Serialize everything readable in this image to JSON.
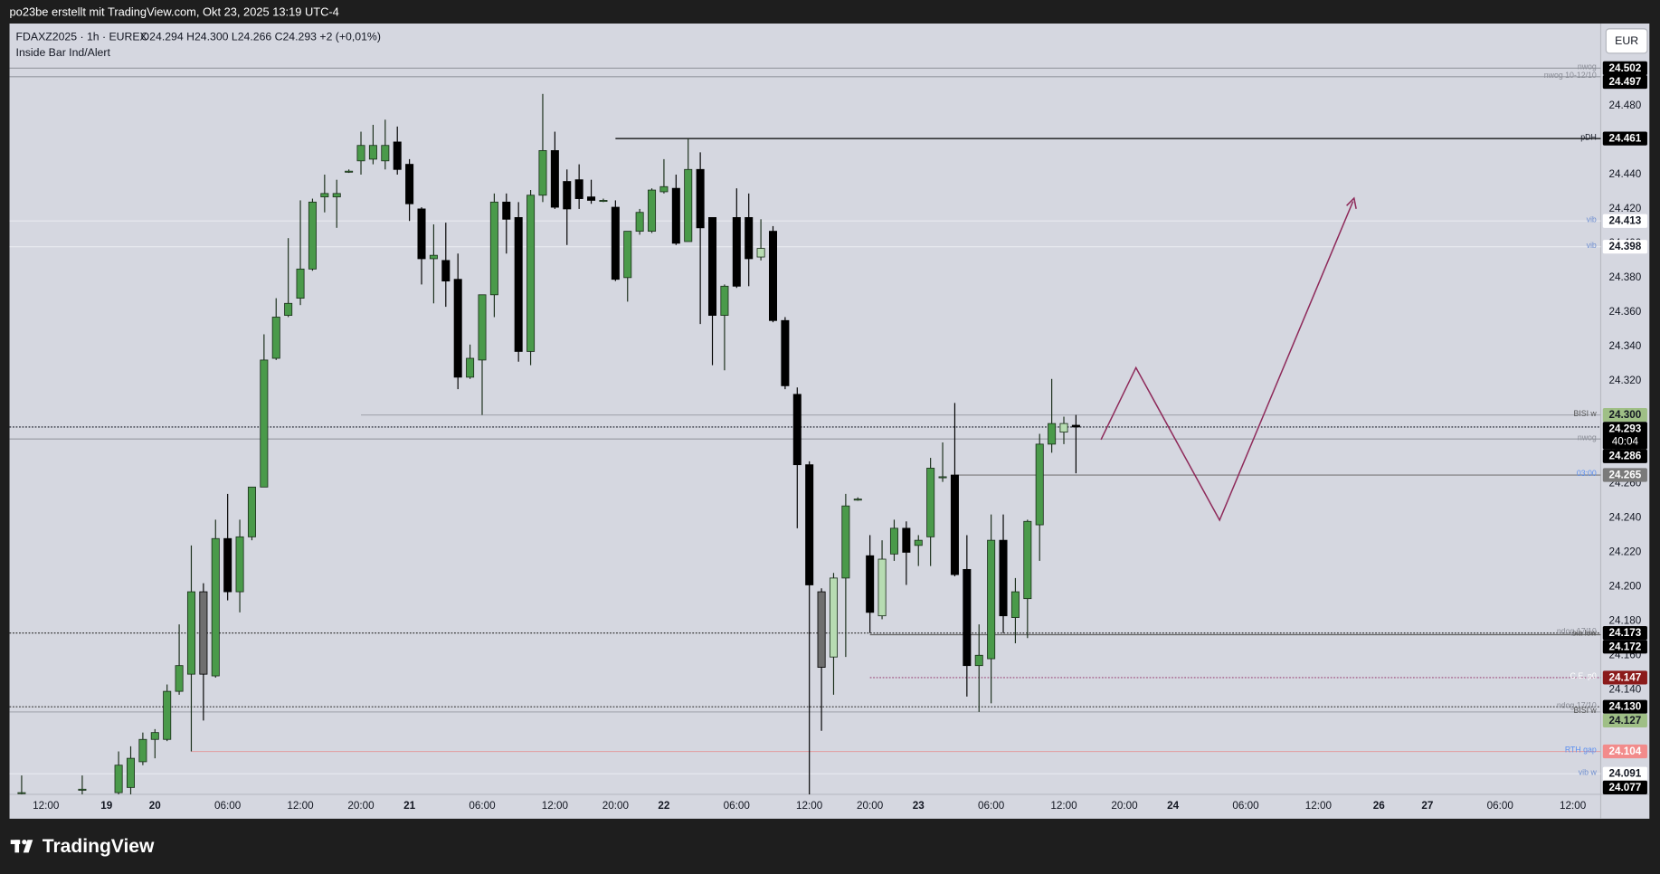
{
  "attribution": "po23be erstellt mit TradingView.com, Okt 23, 2025 13:19 UTC-4",
  "brand": "TradingView",
  "chart_data": {
    "type": "candlestick",
    "symbol": "FDAXZ2025 · 1h · EUREX",
    "ohlc_text": "O24.294  H24.300  L24.266  C24.293  +2 (+0,01%)",
    "indicator": "Inside Bar Ind/Alert",
    "currency": "EUR",
    "x": [
      -2,
      3,
      6,
      7,
      8,
      9,
      10,
      11,
      12,
      13,
      14,
      15,
      16,
      17,
      18,
      19,
      20,
      21,
      22,
      23,
      24,
      25,
      26,
      27,
      28,
      29,
      30,
      31,
      32,
      33,
      34,
      35,
      36,
      37,
      38,
      39,
      40,
      41,
      42,
      43,
      44,
      45,
      46,
      47,
      48,
      49,
      50,
      51,
      52,
      53,
      54,
      55,
      56,
      57,
      58,
      59,
      60,
      61,
      62,
      63,
      64,
      65,
      66,
      67,
      68,
      69,
      70,
      71,
      72,
      73,
      74,
      75,
      76,
      77,
      78,
      79,
      80,
      81,
      82,
      83,
      84,
      85
    ],
    "open": [
      24.08,
      24.082,
      24.08,
      24.083,
      24.098,
      24.111,
      24.111,
      24.139,
      24.149,
      24.197,
      24.148,
      24.228,
      24.197,
      24.229,
      24.258,
      24.333,
      24.358,
      24.368,
      24.385,
      24.427,
      24.427,
      24.442,
      24.448,
      24.449,
      24.448,
      24.459,
      24.446,
      24.42,
      24.391,
      24.39,
      24.379,
      24.322,
      24.332,
      24.37,
      24.424,
      24.415,
      24.337,
      24.428,
      24.454,
      24.436,
      24.437,
      24.427,
      24.425,
      24.421,
      24.38,
      24.407,
      24.407,
      24.43,
      24.432,
      24.401,
      24.443,
      24.415,
      24.358,
      24.415,
      24.415,
      24.392,
      24.407,
      24.355,
      24.312,
      24.271,
      24.197,
      24.159,
      24.205,
      24.251,
      24.218,
      24.183,
      24.219,
      24.234,
      24.224,
      24.229,
      24.264,
      24.265,
      24.21,
      24.154,
      24.158,
      24.227,
      24.182,
      24.193,
      24.236,
      24.283,
      24.29,
      24.294
    ],
    "high": [
      24.09,
      24.09,
      24.104,
      24.107,
      24.115,
      24.117,
      24.143,
      24.178,
      24.224,
      24.202,
      24.239,
      24.254,
      24.239,
      24.258,
      24.347,
      24.368,
      24.403,
      24.425,
      24.426,
      24.44,
      24.437,
      24.443,
      24.465,
      24.469,
      24.472,
      24.468,
      24.449,
      24.421,
      24.411,
      24.412,
      24.394,
      24.341,
      24.37,
      24.429,
      24.429,
      24.424,
      24.431,
      24.487,
      24.465,
      24.443,
      24.446,
      24.437,
      24.426,
      24.425,
      24.407,
      24.42,
      24.432,
      24.449,
      24.44,
      24.461,
      24.453,
      24.415,
      24.376,
      24.432,
      24.429,
      24.414,
      24.41,
      24.357,
      24.316,
      24.273,
      24.199,
      24.208,
      24.254,
      24.252,
      24.23,
      24.227,
      24.239,
      24.238,
      24.23,
      24.275,
      24.284,
      24.307,
      24.23,
      24.178,
      24.242,
      24.242,
      24.205,
      24.239,
      24.289,
      24.321,
      24.299,
      24.3
    ],
    "low": [
      24.078,
      24.078,
      24.078,
      24.079,
      24.096,
      24.1,
      24.11,
      24.137,
      24.104,
      24.122,
      24.147,
      24.192,
      24.185,
      24.227,
      24.258,
      24.332,
      24.357,
      24.364,
      24.384,
      24.418,
      24.409,
      24.441,
      24.44,
      24.446,
      24.443,
      24.44,
      24.413,
      24.376,
      24.365,
      24.363,
      24.315,
      24.321,
      24.3,
      24.357,
      24.394,
      24.331,
      24.329,
      24.424,
      24.42,
      24.399,
      24.42,
      24.423,
      24.424,
      24.378,
      24.366,
      24.405,
      24.406,
      24.429,
      24.399,
      24.401,
      24.353,
      24.329,
      24.326,
      24.374,
      24.375,
      24.39,
      24.354,
      24.315,
      24.234,
      24.077,
      24.116,
      24.137,
      24.159,
      24.25,
      24.173,
      24.181,
      24.215,
      24.201,
      24.212,
      24.212,
      24.261,
      24.206,
      24.136,
      24.127,
      24.132,
      24.173,
      24.167,
      24.17,
      24.215,
      24.278,
      24.283,
      24.266
    ],
    "close": [
      24.08,
      24.082,
      24.096,
      24.1,
      24.111,
      24.115,
      24.139,
      24.154,
      24.197,
      24.149,
      24.228,
      24.197,
      24.229,
      24.258,
      24.332,
      24.357,
      24.365,
      24.385,
      24.424,
      24.429,
      24.429,
      24.442,
      24.457,
      24.457,
      24.457,
      24.443,
      24.423,
      24.391,
      24.393,
      24.378,
      24.322,
      24.333,
      24.37,
      24.424,
      24.414,
      24.337,
      24.428,
      24.454,
      24.421,
      24.42,
      24.426,
      24.425,
      24.425,
      24.379,
      24.407,
      24.418,
      24.431,
      24.433,
      24.4,
      24.443,
      24.409,
      24.358,
      24.375,
      24.375,
      24.391,
      24.397,
      24.355,
      24.317,
      24.271,
      24.201,
      24.153,
      24.205,
      24.247,
      24.251,
      24.185,
      24.216,
      24.234,
      24.22,
      24.227,
      24.269,
      24.264,
      24.207,
      24.154,
      24.16,
      24.227,
      24.183,
      24.197,
      24.238,
      24.283,
      24.295,
      24.295,
      24.293
    ],
    "up_color": "#4a9a4a",
    "down_color": "#000000",
    "outline_color": "#1a2e1a",
    "inside_bars": [
      13,
      59,
      64,
      65,
      69,
      84
    ],
    "inside_up_color": "#b7dcb2",
    "inside_down_color": "#6f6f6f",
    "xlim": [
      -3,
      128.3
    ],
    "ylim": [
      24.079,
      24.528
    ],
    "grid": false,
    "yticks": [
      {
        "value": 24.14,
        "label": "24.140"
      },
      {
        "value": 24.16,
        "label": "24.160"
      },
      {
        "value": 24.18,
        "label": "24.180"
      },
      {
        "value": 24.2,
        "label": "24.200"
      },
      {
        "value": 24.22,
        "label": "24.220"
      },
      {
        "value": 24.24,
        "label": "24.240"
      },
      {
        "value": 24.26,
        "label": "24.260"
      },
      {
        "value": 24.28,
        "label": "24.280"
      },
      {
        "value": 24.3,
        "label": "24.300"
      },
      {
        "value": 24.32,
        "label": "24.320"
      },
      {
        "value": 24.34,
        "label": "24.340"
      },
      {
        "value": 24.36,
        "label": "24.360"
      },
      {
        "value": 24.38,
        "label": "24.380"
      },
      {
        "value": 24.4,
        "label": "24.400"
      },
      {
        "value": 24.42,
        "label": "24.420"
      },
      {
        "value": 24.44,
        "label": "24.440"
      },
      {
        "value": 24.46,
        "label": "24.460"
      },
      {
        "value": 24.48,
        "label": "24.480"
      }
    ],
    "xticks": [
      {
        "value": 0,
        "label": "12:00"
      },
      {
        "value": 5,
        "label": "19"
      },
      {
        "value": 9,
        "label": "20"
      },
      {
        "value": 15,
        "label": "06:00"
      },
      {
        "value": 21,
        "label": "12:00"
      },
      {
        "value": 26,
        "label": "20:00"
      },
      {
        "value": 30,
        "label": "21"
      },
      {
        "value": 36,
        "label": "06:00"
      },
      {
        "value": 42,
        "label": "12:00"
      },
      {
        "value": 47,
        "label": "20:00"
      },
      {
        "value": 51,
        "label": "22"
      },
      {
        "value": 57,
        "label": "06:00"
      },
      {
        "value": 63,
        "label": "12:00"
      },
      {
        "value": 68,
        "label": "20:00"
      },
      {
        "value": 72,
        "label": "23"
      },
      {
        "value": 78,
        "label": "06:00"
      },
      {
        "value": 84,
        "label": "12:00"
      },
      {
        "value": 89,
        "label": "20:00"
      },
      {
        "value": 93,
        "label": "24"
      },
      {
        "value": 99,
        "label": "06:00"
      },
      {
        "value": 105,
        "label": "12:00"
      },
      {
        "value": 110,
        "label": "26"
      },
      {
        "value": 114,
        "label": "27"
      },
      {
        "value": 120,
        "label": "06:00"
      },
      {
        "value": 126,
        "label": "12:00"
      }
    ],
    "levels": [
      {
        "value": 24.502,
        "text": "nwog",
        "tag": "24.502",
        "color": "#9598a1",
        "dash": "solid",
        "text_color": "#8a8d96",
        "tag_bg": "#000000",
        "tag_fg": "#ffffff"
      },
      {
        "value": 24.497,
        "text": "nwog 10-12/10",
        "tag": "24.497",
        "color": "#9598a1",
        "dash": "solid",
        "text_color": "#8a8d96",
        "tag_bg": "#000000",
        "tag_fg": "#ffffff"
      },
      {
        "value": 24.461,
        "text": "pDH",
        "tag": "24.461",
        "color": "#000000",
        "dash": "solid",
        "text_color": "#131722",
        "tag_bg": "#000000",
        "tag_fg": "#ffffff",
        "x_start": 47
      },
      {
        "value": 24.413,
        "text": "vib",
        "tag": "24.413",
        "color": "#e9eaf0",
        "dash": "solid",
        "text_color": "#6f8fd0",
        "tag_bg": "#ffffff",
        "tag_fg": "#131722"
      },
      {
        "value": 24.398,
        "text": "vib",
        "tag": "24.398",
        "color": "#e9eaf0",
        "dash": "solid",
        "text_color": "#6f8fd0",
        "tag_bg": "#ffffff",
        "tag_fg": "#131722"
      },
      {
        "value": 24.3,
        "text": "BISI w",
        "tag": "24.300",
        "color": "#a8abb3",
        "dash": "solid",
        "text_color": "#555555",
        "tag_bg": "#9fbf86",
        "tag_fg": "#131722",
        "x_start": 26
      },
      {
        "value": 24.293,
        "tag": "24.293",
        "countdown": "40:04",
        "color": "#131722",
        "dash": "dotted",
        "tag_bg": "#000000",
        "tag_fg": "#ffffff"
      },
      {
        "value": 24.286,
        "text": "nwog",
        "tag": "24.286",
        "color": "#9598a1",
        "dash": "solid",
        "text_color": "#8a8d96",
        "tag_bg": "#000000",
        "tag_fg": "#ffffff"
      },
      {
        "value": 24.265,
        "text": "03:00",
        "tag": "24.265",
        "color": "#7a7a7a",
        "dash": "solid",
        "text_color": "#5b8ff0",
        "tag_bg": "#7a7a7a",
        "tag_fg": "#ffffff",
        "x_start": 75
      },
      {
        "value": 24.173,
        "text": "ndog 17/10",
        "tag": "24.173",
        "color": "#333333",
        "dash": "dotted",
        "text_color": "#8a8d96",
        "tag_bg": "#000000",
        "tag_fg": "#ffffff"
      },
      {
        "value": 24.172,
        "text": "sia low",
        "tag": "24.172",
        "color": "#666666",
        "dash": "solid",
        "text_color": "#555555",
        "tag_bg": "#000000",
        "tag_fg": "#ffffff",
        "x_start": 68
      },
      {
        "value": 24.147,
        "text": "C.E. p0",
        "tag": "24.147",
        "color": "#9c4a7a",
        "dash": "dotted",
        "text_color": "#ffffff",
        "tag_bg": "#8b1a1a",
        "tag_fg": "#ffffff",
        "x_start": 68
      },
      {
        "value": 24.13,
        "text": "ndog 17/10",
        "tag": "24.130",
        "color": "#333333",
        "dash": "dotted",
        "text_color": "#8a8d96",
        "tag_bg": "#000000",
        "tag_fg": "#ffffff"
      },
      {
        "value": 24.127,
        "text": "BISI w",
        "tag": "24.127",
        "color": "#a8abb3",
        "dash": "solid",
        "text_color": "#555555",
        "tag_bg": "#9fbf86",
        "tag_fg": "#131722"
      },
      {
        "value": 24.104,
        "text": "RTH gap",
        "tag": "24.104",
        "color": "#e0a4a8",
        "dash": "solid",
        "text_color": "#5b8ff0",
        "tag_bg": "#f28b8b",
        "tag_fg": "#ffffff",
        "x_start": 12
      },
      {
        "value": 24.091,
        "text": "vib w",
        "tag": "24.091",
        "color": "#e9eaf0",
        "dash": "solid",
        "text_color": "#6f8fd0",
        "tag_bg": "#ffffff",
        "tag_fg": "#131722"
      },
      {
        "value": 24.077,
        "tag": "24.077",
        "tag_bg": "#000000",
        "tag_fg": "#ffffff"
      }
    ]
  }
}
